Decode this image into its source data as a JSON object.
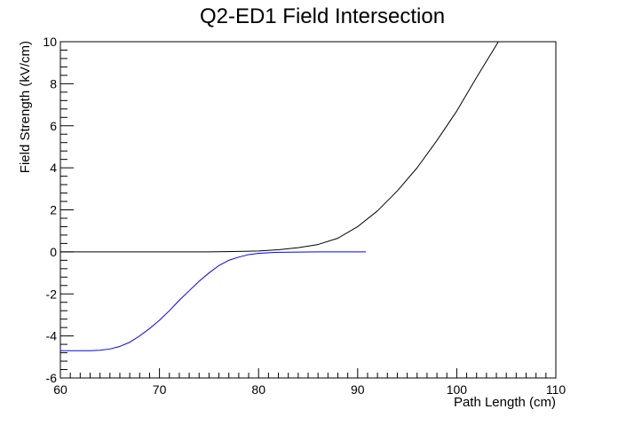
{
  "chart_data": {
    "type": "line",
    "title": "Q2-ED1 Field Intersection",
    "xlabel": "Path Length (cm)",
    "ylabel": "Field Strength (kV/cm)",
    "xlim": [
      60,
      110
    ],
    "ylim": [
      -6,
      10
    ],
    "x_ticks": [
      60,
      70,
      80,
      90,
      100,
      110
    ],
    "y_ticks": [
      -6,
      -4,
      -2,
      0,
      2,
      4,
      6,
      8,
      10
    ],
    "grid": false,
    "legend": "none",
    "series": [
      {
        "color": "#000000",
        "points": [
          [
            60,
            0
          ],
          [
            65,
            0
          ],
          [
            70,
            0
          ],
          [
            75,
            0
          ],
          [
            78,
            0.02
          ],
          [
            80,
            0.04
          ],
          [
            82,
            0.1
          ],
          [
            84,
            0.2
          ],
          [
            86,
            0.35
          ],
          [
            88,
            0.65
          ],
          [
            90,
            1.2
          ],
          [
            92,
            1.95
          ],
          [
            94,
            2.9
          ],
          [
            96,
            4.0
          ],
          [
            98,
            5.3
          ],
          [
            100,
            6.7
          ],
          [
            102,
            8.3
          ],
          [
            104.2,
            10.0
          ]
        ]
      },
      {
        "color": "#0000ff",
        "points": [
          [
            60,
            -4.7
          ],
          [
            62,
            -4.7
          ],
          [
            63,
            -4.7
          ],
          [
            64,
            -4.68
          ],
          [
            65,
            -4.62
          ],
          [
            66,
            -4.5
          ],
          [
            67,
            -4.3
          ],
          [
            68,
            -4.0
          ],
          [
            69,
            -3.65
          ],
          [
            70,
            -3.25
          ],
          [
            71,
            -2.8
          ],
          [
            72,
            -2.3
          ],
          [
            73,
            -1.85
          ],
          [
            74,
            -1.4
          ],
          [
            75,
            -1.0
          ],
          [
            76,
            -0.65
          ],
          [
            77,
            -0.4
          ],
          [
            78,
            -0.25
          ],
          [
            79,
            -0.13
          ],
          [
            80,
            -0.07
          ],
          [
            81,
            -0.04
          ],
          [
            82,
            -0.02
          ],
          [
            84,
            -0.01
          ],
          [
            86,
            0
          ],
          [
            88,
            0
          ],
          [
            90,
            0
          ],
          [
            90.8,
            0
          ]
        ]
      }
    ]
  }
}
